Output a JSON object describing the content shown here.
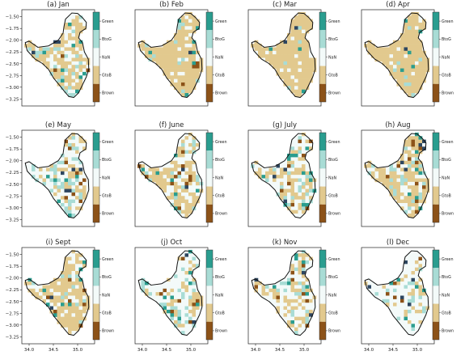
{
  "chart_data": {
    "type": "heatmap",
    "panels": [
      {
        "title": "(a) Jan"
      },
      {
        "title": "(b) Feb"
      },
      {
        "title": "(c) Mar"
      },
      {
        "title": "(d) Apr"
      },
      {
        "title": "(e) May"
      },
      {
        "title": "(f) June"
      },
      {
        "title": "(g) July"
      },
      {
        "title": "(h) Aug"
      },
      {
        "title": "(i) Sept"
      },
      {
        "title": "(j) Oct"
      },
      {
        "title": "(k) Nov"
      },
      {
        "title": "(l) Dec"
      }
    ],
    "y_ticks": [
      -1.5,
      -1.75,
      -2.0,
      -2.25,
      -2.5,
      -2.75,
      -3.0,
      -3.25
    ],
    "y_tick_labels": [
      "−1.50",
      "−1.75",
      "−2.00",
      "−2.25",
      "−2.50",
      "−2.75",
      "−3.00",
      "−3.25"
    ],
    "x_ticks": [
      34.0,
      34.5,
      35.0
    ],
    "x_tick_labels": [
      "34.0",
      "34.5",
      "35.0"
    ],
    "xlim": [
      33.85,
      35.35
    ],
    "ylim": [
      -3.4,
      -1.35
    ],
    "colorbar": {
      "labels": [
        "Green",
        "BtoG",
        "NaN",
        "GtoB",
        "Brown"
      ],
      "colors": [
        "#2a9d8f",
        "#a8dcd5",
        "#f3faf9",
        "#e2c98e",
        "#8c5218"
      ]
    },
    "legend": "right of each panel"
  }
}
